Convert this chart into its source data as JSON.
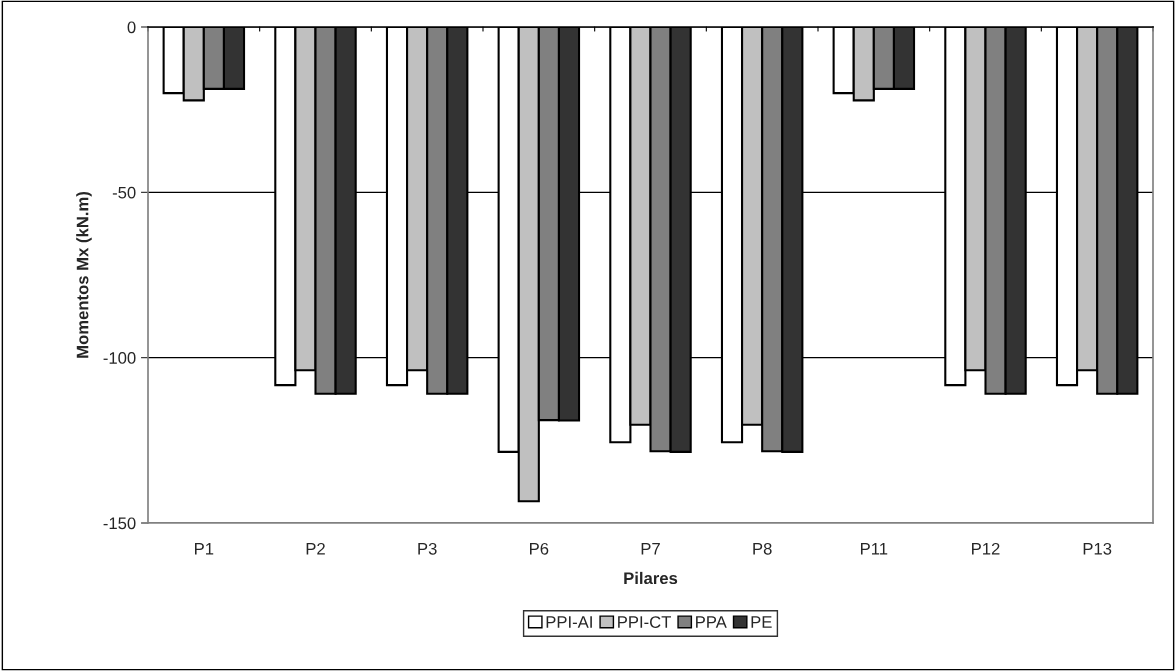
{
  "chart_data": {
    "type": "bar",
    "xlabel": "Pilares",
    "ylabel": "Momentos Mx (kN.m)",
    "categories": [
      "P1",
      "P2",
      "P3",
      "P6",
      "P7",
      "P8",
      "P11",
      "P12",
      "P13"
    ],
    "series": [
      {
        "name": "PPI-AI",
        "color": "#ffffff",
        "values": [
          -20,
          -108.3,
          -108.3,
          -128.5,
          -125.6,
          -125.6,
          -20,
          -108.3,
          -108.3
        ]
      },
      {
        "name": "PPI-CT",
        "color": "#c0c0c0",
        "values": [
          -22.2,
          -103.8,
          -103.8,
          -143.4,
          -120.3,
          -120.3,
          -22.2,
          -103.8,
          -103.8
        ]
      },
      {
        "name": "PPA",
        "color": "#808080",
        "values": [
          -18.7,
          -110.9,
          -110.9,
          -118.9,
          -128.3,
          -128.3,
          -18.7,
          -110.9,
          -110.9
        ]
      },
      {
        "name": "PE",
        "color": "#333333",
        "values": [
          -18.7,
          -110.9,
          -110.9,
          -119,
          -128.5,
          -128.5,
          -18.7,
          -110.9,
          -110.9
        ]
      }
    ],
    "ylim": [
      -150,
      0
    ],
    "yticks": [
      -150,
      -100,
      -50,
      0
    ],
    "grid": "y",
    "legend": "bottom"
  }
}
